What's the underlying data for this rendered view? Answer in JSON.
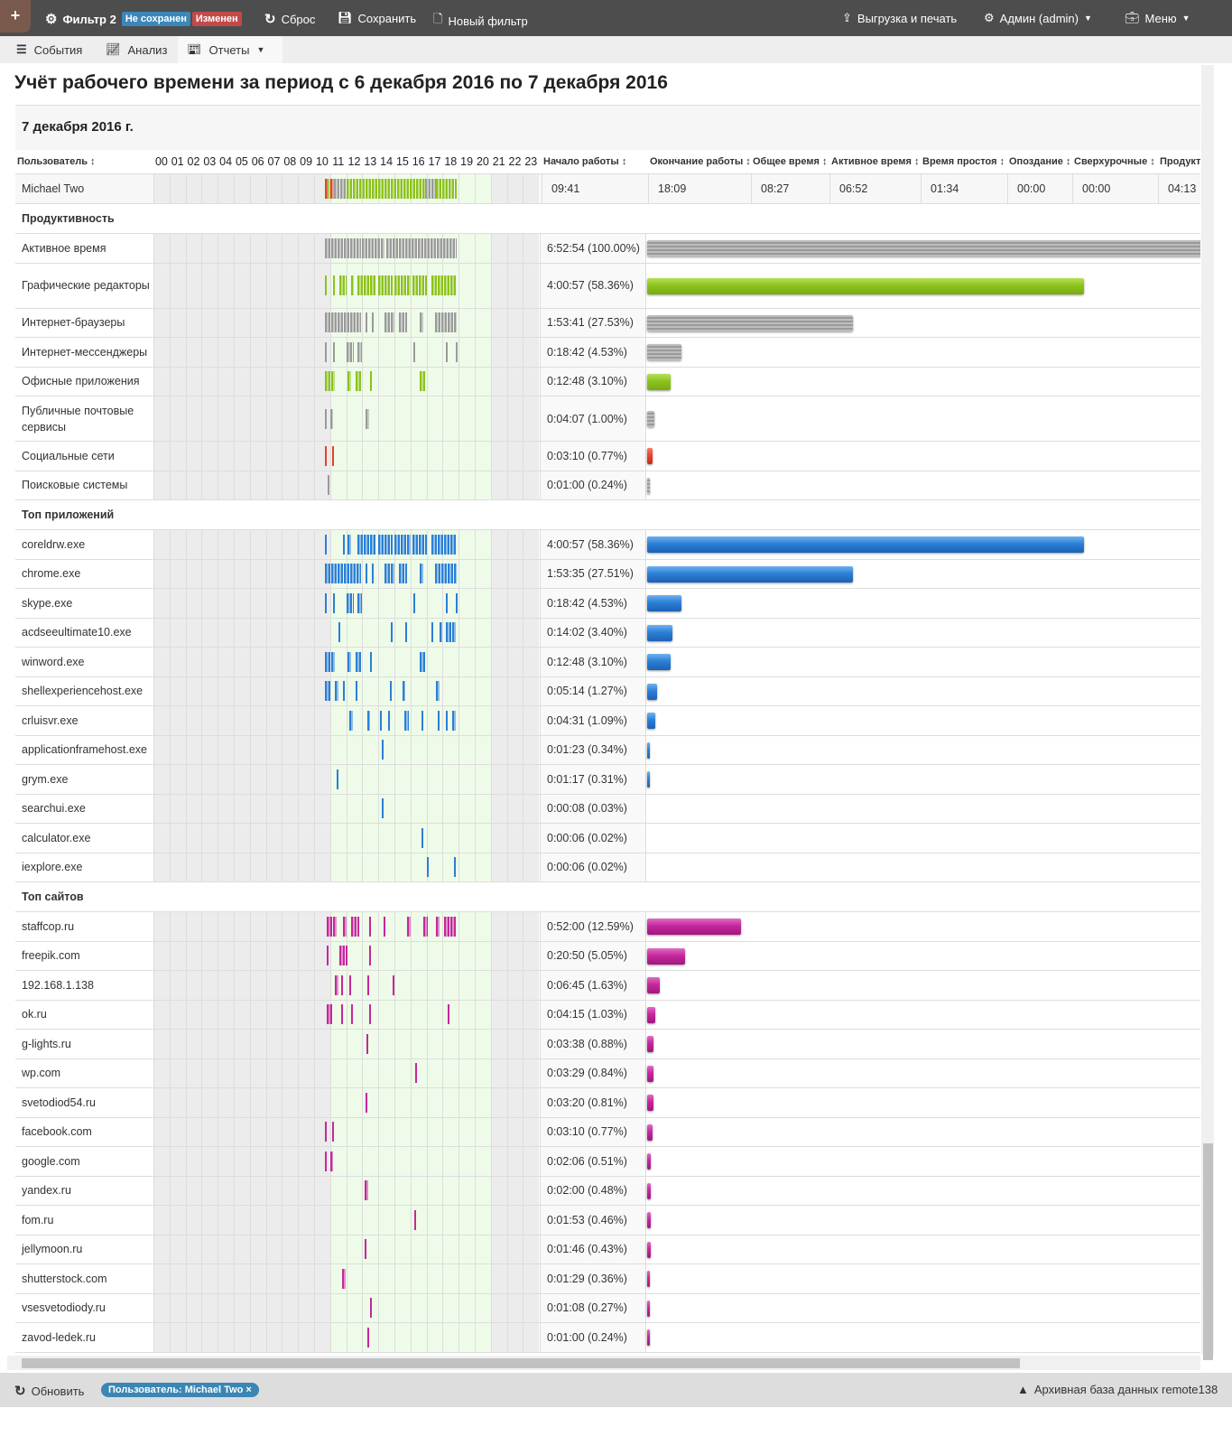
{
  "topbar": {
    "add_label": "+",
    "filter_name": "Фильтр 2",
    "badge_unsaved": "Не сохранен",
    "badge_changed": "Изменен",
    "reset": "Сброс",
    "save": "Сохранить",
    "new_filter": "Новый фильтр",
    "export": "Выгрузка и печать",
    "admin": "Админ (admin)",
    "menu": "Меню"
  },
  "tabs": [
    {
      "label": "События",
      "icon": "list-icon"
    },
    {
      "label": "Анализ",
      "icon": "chart-line-icon"
    },
    {
      "label": "Отчеты",
      "icon": "report-icon"
    }
  ],
  "page_title": "Учёт рабочего времени за период с 6 декабря 2016 по 7 декабря 2016",
  "date_heading": "7 декабря 2016 г.",
  "colors": {
    "green": "#8cc21c",
    "gray": "#9a9a9a",
    "blue": "#2b7fd6",
    "magenta": "#c4289c",
    "red": "#e8412c",
    "work_hours_bg": "#eefbe8"
  },
  "work_hours": [
    11,
    20
  ],
  "columns": {
    "user": "Пользователь ↕",
    "hours": [
      "00",
      "01",
      "02",
      "03",
      "04",
      "05",
      "06",
      "07",
      "08",
      "09",
      "10",
      "11",
      "12",
      "13",
      "14",
      "15",
      "16",
      "17",
      "18",
      "19",
      "20",
      "21",
      "22",
      "23"
    ],
    "start": "Начало работы ↕",
    "end": "Окончание работы ↕",
    "total": "Общее время ↕",
    "active": "Активное время ↕",
    "idle": "Время простоя ↕",
    "late": "Опоздание ↕",
    "overtime": "Сверхурочные ↕",
    "productive": "Продукти"
  },
  "user_row": {
    "name": "Michael Two",
    "start": "09:41",
    "end": "18:09",
    "total": "08:27",
    "active": "06:52",
    "idle": "01:34",
    "late": "00:00",
    "overtime": "00:00",
    "productive": "04:13",
    "segments": [
      [
        10.67,
        10.8,
        "red"
      ],
      [
        10.8,
        11.0,
        "green"
      ],
      [
        11.0,
        11.25,
        "red"
      ],
      [
        11.25,
        12.0,
        "gray"
      ],
      [
        12.0,
        16.9,
        "green"
      ],
      [
        16.9,
        17.6,
        "gray"
      ],
      [
        17.6,
        18.9,
        "green"
      ]
    ]
  },
  "sections": [
    {
      "title": "Продуктивность",
      "rows": [
        {
          "name": "Активное время",
          "value": "6:52:54 (100.00%)",
          "percent": 100,
          "color": "gray",
          "segments": [
            [
              10.67,
              12.9
            ],
            [
              13.0,
              14.4
            ],
            [
              14.5,
              18.9
            ]
          ]
        },
        {
          "name": "Графические редакторы",
          "value": "4:00:57 (58.36%)",
          "percent": 58.36,
          "color": "green",
          "tall": true,
          "segments": [
            [
              10.67,
              10.75
            ],
            [
              11.2,
              11.3
            ],
            [
              11.6,
              12.0
            ],
            [
              12.3,
              12.5
            ],
            [
              12.7,
              13.9
            ],
            [
              14.0,
              14.9
            ],
            [
              15.0,
              16.0
            ],
            [
              16.1,
              17.0
            ],
            [
              17.3,
              18.8
            ]
          ]
        },
        {
          "name": "Интернет-браузеры",
          "value": "1:53:41 (27.53%)",
          "percent": 27.53,
          "color": "gray",
          "segments": [
            [
              10.67,
              12.9
            ],
            [
              13.2,
              13.3
            ],
            [
              13.6,
              13.7
            ],
            [
              14.4,
              15.0
            ],
            [
              15.3,
              15.8
            ],
            [
              16.6,
              16.8
            ],
            [
              17.5,
              18.9
            ]
          ]
        },
        {
          "name": "Интернет-мессенджеры",
          "value": "0:18:42 (4.53%)",
          "percent": 4.53,
          "color": "gray",
          "segments": [
            [
              10.7,
              10.8
            ],
            [
              11.2,
              11.3
            ],
            [
              12.0,
              12.5
            ],
            [
              12.7,
              13.0
            ],
            [
              16.2,
              16.3
            ],
            [
              18.2,
              18.3
            ],
            [
              18.8,
              18.9
            ]
          ]
        },
        {
          "name": "Офисные приложения",
          "value": "0:12:48 (3.10%)",
          "percent": 3.1,
          "color": "green",
          "segments": [
            [
              10.7,
              11.3
            ],
            [
              12.1,
              12.3
            ],
            [
              12.6,
              13.0
            ],
            [
              13.5,
              13.6
            ],
            [
              16.6,
              16.9
            ]
          ]
        },
        {
          "name": "Публичные почтовые сервисы",
          "value": "0:04:07 (1.00%)",
          "percent": 1.0,
          "color": "gray",
          "tall": true,
          "segments": [
            [
              10.7,
              10.8
            ],
            [
              11.0,
              11.2
            ],
            [
              13.2,
              13.4
            ]
          ]
        },
        {
          "name": "Социальные сети",
          "value": "0:03:10 (0.77%)",
          "percent": 0.77,
          "color": "red",
          "segments": [
            [
              10.7,
              10.8
            ],
            [
              11.1,
              11.2
            ]
          ]
        },
        {
          "name": "Поисковые системы",
          "value": "0:01:00 (0.24%)",
          "percent": 0.24,
          "color": "gray",
          "segments": [
            [
              10.85,
              10.92
            ]
          ]
        }
      ]
    },
    {
      "title": "Топ приложений",
      "rows": [
        {
          "name": "coreldrw.exe",
          "value": "4:00:57 (58.36%)",
          "percent": 58.36,
          "color": "blue",
          "segments": [
            [
              10.67,
              10.75
            ],
            [
              11.8,
              11.9
            ],
            [
              12.1,
              12.3
            ],
            [
              12.7,
              13.9
            ],
            [
              14.0,
              14.9
            ],
            [
              15.0,
              16.0
            ],
            [
              16.1,
              17.0
            ],
            [
              17.3,
              18.8
            ]
          ]
        },
        {
          "name": "chrome.exe",
          "value": "1:53:35 (27.51%)",
          "percent": 27.51,
          "color": "blue",
          "segments": [
            [
              10.67,
              12.9
            ],
            [
              13.2,
              13.3
            ],
            [
              13.6,
              13.7
            ],
            [
              14.4,
              15.0
            ],
            [
              15.3,
              15.8
            ],
            [
              16.6,
              16.8
            ],
            [
              17.5,
              18.9
            ]
          ]
        },
        {
          "name": "skype.exe",
          "value": "0:18:42 (4.53%)",
          "percent": 4.53,
          "color": "blue",
          "segments": [
            [
              10.7,
              10.8
            ],
            [
              11.2,
              11.3
            ],
            [
              12.0,
              12.5
            ],
            [
              12.7,
              13.0
            ],
            [
              16.2,
              16.3
            ],
            [
              18.2,
              18.3
            ],
            [
              18.8,
              18.9
            ]
          ]
        },
        {
          "name": "acdseeultimate10.exe",
          "value": "0:14:02 (3.40%)",
          "percent": 3.4,
          "color": "blue",
          "segments": [
            [
              11.5,
              11.6
            ],
            [
              14.8,
              14.9
            ],
            [
              15.7,
              15.8
            ],
            [
              17.3,
              17.4
            ],
            [
              17.8,
              18.0
            ],
            [
              18.2,
              18.8
            ]
          ]
        },
        {
          "name": "winword.exe",
          "value": "0:12:48 (3.10%)",
          "percent": 3.1,
          "color": "blue",
          "segments": [
            [
              10.7,
              11.3
            ],
            [
              12.1,
              12.3
            ],
            [
              12.6,
              13.0
            ],
            [
              13.5,
              13.6
            ],
            [
              16.6,
              16.9
            ]
          ]
        },
        {
          "name": "shellexperiencehost.exe",
          "value": "0:05:14 (1.27%)",
          "percent": 1.27,
          "color": "blue",
          "segments": [
            [
              10.7,
              11.0
            ],
            [
              11.3,
              11.5
            ],
            [
              11.8,
              11.9
            ],
            [
              12.6,
              12.7
            ],
            [
              14.7,
              14.8
            ],
            [
              15.5,
              15.7
            ],
            [
              17.6,
              17.8
            ]
          ]
        },
        {
          "name": "crluisvr.exe",
          "value": "0:04:31 (1.09%)",
          "percent": 1.09,
          "color": "blue",
          "segments": [
            [
              12.2,
              12.4
            ],
            [
              13.3,
              13.5
            ],
            [
              14.1,
              14.2
            ],
            [
              14.6,
              14.7
            ],
            [
              15.6,
              15.9
            ],
            [
              16.7,
              16.8
            ],
            [
              17.7,
              17.8
            ],
            [
              18.2,
              18.3
            ],
            [
              18.6,
              18.8
            ]
          ]
        },
        {
          "name": "applicationframehost.exe",
          "value": "0:01:23 (0.34%)",
          "percent": 0.34,
          "color": "blue",
          "segments": [
            [
              14.2,
              14.3
            ]
          ]
        },
        {
          "name": "grym.exe",
          "value": "0:01:17 (0.31%)",
          "percent": 0.31,
          "color": "blue",
          "segments": [
            [
              11.4,
              11.5
            ]
          ]
        },
        {
          "name": "searchui.exe",
          "value": "0:00:08 (0.03%)",
          "percent": 0.03,
          "color": "blue",
          "segments": [
            [
              14.2,
              14.3
            ]
          ]
        },
        {
          "name": "calculator.exe",
          "value": "0:00:06 (0.02%)",
          "percent": 0.02,
          "color": "blue",
          "segments": [
            [
              16.7,
              16.8
            ]
          ]
        },
        {
          "name": "iexplore.exe",
          "value": "0:00:06 (0.02%)",
          "percent": 0.02,
          "color": "blue",
          "segments": [
            [
              17.0,
              17.1
            ],
            [
              18.7,
              18.8
            ]
          ]
        }
      ]
    },
    {
      "title": "Топ сайтов",
      "rows": [
        {
          "name": "staffcop.ru",
          "value": "0:52:00 (12.59%)",
          "percent": 12.59,
          "color": "magenta",
          "segments": [
            [
              10.8,
              11.4
            ],
            [
              11.8,
              12.0
            ],
            [
              12.3,
              12.8
            ],
            [
              13.4,
              13.5
            ],
            [
              14.3,
              14.4
            ],
            [
              15.8,
              16.0
            ],
            [
              16.8,
              17.1
            ],
            [
              17.6,
              17.8
            ],
            [
              18.1,
              18.8
            ]
          ]
        },
        {
          "name": "freepik.com",
          "value": "0:20:50 (5.05%)",
          "percent": 5.05,
          "color": "magenta",
          "segments": [
            [
              10.8,
              10.9
            ],
            [
              11.6,
              12.1
            ],
            [
              13.4,
              13.5
            ]
          ]
        },
        {
          "name": "192.168.1.138",
          "value": "0:06:45 (1.63%)",
          "percent": 1.63,
          "color": "magenta",
          "segments": [
            [
              11.3,
              11.5
            ],
            [
              11.7,
              11.8
            ],
            [
              12.2,
              12.3
            ],
            [
              13.3,
              13.4
            ],
            [
              14.9,
              15.0
            ]
          ]
        },
        {
          "name": "ok.ru",
          "value": "0:04:15 (1.03%)",
          "percent": 1.03,
          "color": "magenta",
          "segments": [
            [
              10.8,
              11.2
            ],
            [
              11.7,
              11.8
            ],
            [
              12.3,
              12.4
            ],
            [
              13.4,
              13.5
            ],
            [
              18.3,
              18.4
            ]
          ]
        },
        {
          "name": "g-lights.ru",
          "value": "0:03:38 (0.88%)",
          "percent": 0.88,
          "color": "magenta",
          "segments": [
            [
              13.25,
              13.35
            ]
          ]
        },
        {
          "name": "wp.com",
          "value": "0:03:29 (0.84%)",
          "percent": 0.84,
          "color": "magenta",
          "segments": [
            [
              16.3,
              16.4
            ]
          ]
        },
        {
          "name": "svetodiod54.ru",
          "value": "0:03:20 (0.81%)",
          "percent": 0.81,
          "color": "magenta",
          "segments": [
            [
              13.2,
              13.3
            ]
          ]
        },
        {
          "name": "facebook.com",
          "value": "0:03:10 (0.77%)",
          "percent": 0.77,
          "color": "magenta",
          "segments": [
            [
              10.7,
              10.8
            ],
            [
              11.1,
              11.2
            ]
          ]
        },
        {
          "name": "google.com",
          "value": "0:02:06 (0.51%)",
          "percent": 0.51,
          "color": "magenta",
          "segments": [
            [
              10.7,
              10.8
            ],
            [
              11.0,
              11.2
            ]
          ]
        },
        {
          "name": "yandex.ru",
          "value": "0:02:00 (0.48%)",
          "percent": 0.48,
          "color": "magenta",
          "segments": [
            [
              13.15,
              13.35
            ]
          ]
        },
        {
          "name": "fom.ru",
          "value": "0:01:53 (0.46%)",
          "percent": 0.46,
          "color": "magenta",
          "segments": [
            [
              16.25,
              16.35
            ]
          ]
        },
        {
          "name": "jellymoon.ru",
          "value": "0:01:46 (0.43%)",
          "percent": 0.43,
          "color": "magenta",
          "segments": [
            [
              13.15,
              13.25
            ]
          ]
        },
        {
          "name": "shutterstock.com",
          "value": "0:01:29 (0.36%)",
          "percent": 0.36,
          "color": "magenta",
          "segments": [
            [
              11.75,
              11.95
            ]
          ]
        },
        {
          "name": "vsesvetodiody.ru",
          "value": "0:01:08 (0.27%)",
          "percent": 0.27,
          "color": "magenta",
          "segments": [
            [
              13.5,
              13.6
            ]
          ]
        },
        {
          "name": "zavod-ledek.ru",
          "value": "0:01:00 (0.24%)",
          "percent": 0.24,
          "color": "magenta",
          "segments": [
            [
              13.3,
              13.4
            ]
          ]
        }
      ]
    }
  ],
  "bottombar": {
    "refresh": "Обновить",
    "filter_chip": "Пользователь: Michael Two",
    "filter_chip_close": "×",
    "archive": "Архивная база данных remote138"
  }
}
